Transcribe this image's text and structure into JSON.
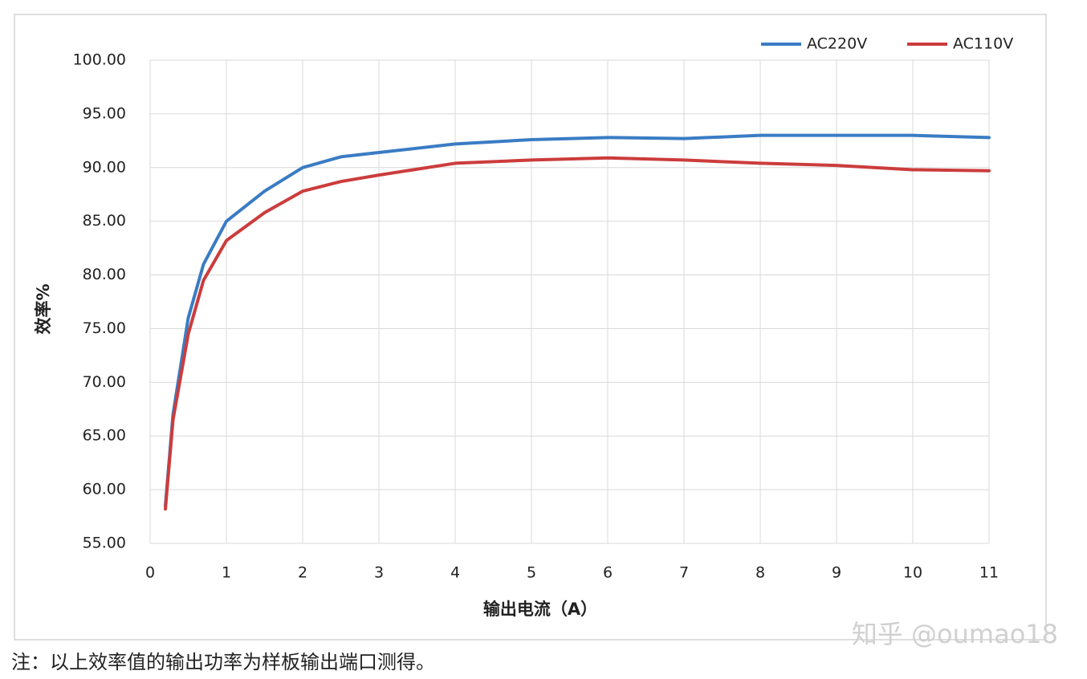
{
  "chart_data": {
    "type": "line",
    "x_label": "输出电流（A）",
    "y_label": "效率%",
    "note": "注：以上效率值的输出功率为样板输出端口测得。",
    "watermark": "知乎 @oumao18",
    "xlim": [
      0,
      11
    ],
    "xticks": [
      0,
      1,
      2,
      3,
      4,
      5,
      6,
      7,
      8,
      9,
      10,
      11
    ],
    "ylim": [
      55,
      100
    ],
    "yticks": [
      {
        "value": 55,
        "label": "55.00"
      },
      {
        "value": 60,
        "label": "60.00"
      },
      {
        "value": 65,
        "label": "65.00"
      },
      {
        "value": 70,
        "label": "70.00"
      },
      {
        "value": 75,
        "label": "75.00"
      },
      {
        "value": 80,
        "label": "80.00"
      },
      {
        "value": 85,
        "label": "85.00"
      },
      {
        "value": 90,
        "label": "90.00"
      },
      {
        "value": 95,
        "label": "95.00"
      },
      {
        "value": 100,
        "label": "100.00"
      }
    ],
    "grid": true,
    "legend": "top-right",
    "x": [
      0.2,
      0.3,
      0.5,
      0.7,
      1,
      1.5,
      2,
      2.5,
      3,
      4,
      5,
      6,
      7,
      8,
      9,
      10,
      11
    ],
    "series": [
      {
        "name": "AC220V",
        "color": "#3a7cc4",
        "values": [
          58.5,
          67,
          76,
          81,
          85,
          87.8,
          90,
          91,
          91.4,
          92.2,
          92.6,
          92.8,
          92.7,
          93,
          93,
          93,
          92.8
        ]
      },
      {
        "name": "AC110V",
        "color": "#cc3c3c",
        "values": [
          58.2,
          66.5,
          74.5,
          79.5,
          83.2,
          85.8,
          87.8,
          88.7,
          89.3,
          90.4,
          90.7,
          90.9,
          90.7,
          90.4,
          90.2,
          89.8,
          89.7
        ]
      }
    ]
  }
}
